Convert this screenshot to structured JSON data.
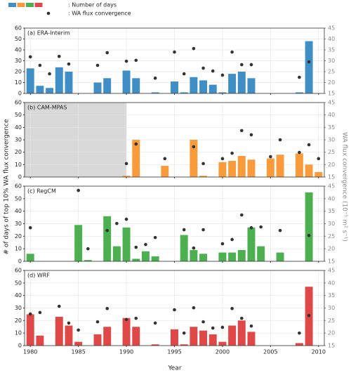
{
  "legend": {
    "colors": [
      "#3f8fc6",
      "#f99b3a",
      "#4caf50",
      "#e04848"
    ],
    "bar_label": ": Number of days",
    "dot_label": ": WA flux convergence",
    "dot_color": "#333333"
  },
  "x_label": "Year",
  "y_label": "# of days of top 10% WA flux convergence",
  "y2_label": "WA flux convergence (10⁻⁵ m² s⁻¹)",
  "xlim": [
    1979.4,
    2010.6
  ],
  "xticks": [
    1980,
    1985,
    1990,
    1995,
    2000,
    2005,
    2010
  ],
  "grid": true,
  "chart_data": [
    {
      "type": "bar",
      "title": "(a) ERA-Interim",
      "x": [
        1980,
        1981,
        1982,
        1983,
        1984,
        1985,
        1986,
        1987,
        1988,
        1989,
        1990,
        1991,
        1992,
        1993,
        1994,
        1995,
        1996,
        1997,
        1998,
        1999,
        2000,
        2001,
        2002,
        2003,
        2004,
        2005,
        2006,
        2007,
        2008,
        2009,
        2010
      ],
      "ylim": [
        0,
        60
      ],
      "yticks": [
        0,
        10,
        20,
        30,
        40,
        50,
        60
      ],
      "y2lim": [
        15,
        45
      ],
      "y2ticks": [
        15,
        20,
        25,
        30,
        35,
        40,
        45
      ],
      "series": [
        {
          "type": "bar",
          "color": "#3f8fc6",
          "values": [
            23,
            7,
            5,
            24,
            20,
            null,
            null,
            10,
            14,
            null,
            21,
            14,
            null,
            1,
            null,
            11,
            1,
            15,
            12,
            8,
            1,
            18,
            20,
            14,
            null,
            null,
            null,
            null,
            1,
            48,
            null
          ]
        },
        {
          "type": "scatter",
          "axis": "y2",
          "color": "#333333",
          "values": [
            31.8,
            27.9,
            24,
            32,
            28.5,
            null,
            null,
            27.9,
            33.7,
            null,
            29.8,
            30.2,
            null,
            22,
            null,
            34,
            24,
            35.6,
            26.6,
            25.3,
            23.4,
            34,
            28.2,
            28.2,
            null,
            null,
            null,
            null,
            22.4,
            29.5,
            null
          ]
        }
      ]
    },
    {
      "type": "bar",
      "title": "(b) CAM-MPAS",
      "shaded_xrange": [
        1979.4,
        1990
      ],
      "x": [
        1980,
        1981,
        1982,
        1983,
        1984,
        1985,
        1986,
        1987,
        1988,
        1989,
        1990,
        1991,
        1992,
        1993,
        1994,
        1995,
        1996,
        1997,
        1998,
        1999,
        2000,
        2001,
        2002,
        2003,
        2004,
        2005,
        2006,
        2007,
        2008,
        2009,
        2010
      ],
      "ylim": [
        0,
        60
      ],
      "yticks": [
        0,
        10,
        20,
        30,
        40,
        50,
        60
      ],
      "y2lim": [
        15,
        45
      ],
      "y2ticks": [
        15,
        20,
        25,
        30,
        35,
        40,
        45
      ],
      "series": [
        {
          "type": "bar",
          "color": "#f99b3a",
          "values": [
            null,
            null,
            null,
            null,
            null,
            null,
            null,
            null,
            null,
            null,
            1,
            30,
            null,
            null,
            9,
            null,
            null,
            30,
            1,
            null,
            12,
            13,
            17,
            14,
            null,
            15,
            18,
            null,
            19,
            10,
            4
          ]
        },
        {
          "type": "scatter",
          "axis": "y2",
          "color": "#333333",
          "values": [
            null,
            null,
            null,
            null,
            null,
            null,
            null,
            null,
            null,
            null,
            20.4,
            28.3,
            null,
            null,
            22.4,
            null,
            null,
            27.2,
            20.4,
            null,
            22.4,
            24.6,
            33.7,
            32,
            null,
            23.2,
            30,
            null,
            24.9,
            28,
            22.4
          ]
        }
      ]
    },
    {
      "type": "bar",
      "title": "(c) RegCM",
      "x": [
        1980,
        1981,
        1982,
        1983,
        1984,
        1985,
        1986,
        1987,
        1988,
        1989,
        1990,
        1991,
        1992,
        1993,
        1994,
        1995,
        1996,
        1997,
        1998,
        1999,
        2000,
        2001,
        2002,
        2003,
        2004,
        2005,
        2006,
        2007,
        2008,
        2009,
        2010
      ],
      "ylim": [
        0,
        60
      ],
      "yticks": [
        0,
        10,
        20,
        30,
        40,
        50,
        60
      ],
      "y2lim": [
        15,
        45
      ],
      "y2ticks": [
        15,
        20,
        25,
        30,
        35,
        40,
        45
      ],
      "series": [
        {
          "type": "bar",
          "color": "#4caf50",
          "values": [
            6,
            null,
            null,
            null,
            null,
            29,
            1,
            null,
            36,
            12,
            27,
            2,
            8,
            4,
            null,
            null,
            21,
            9,
            6,
            null,
            7,
            7,
            9,
            27,
            12,
            null,
            7,
            null,
            null,
            55,
            null
          ]
        },
        {
          "type": "scatter",
          "axis": "y2",
          "color": "#333333",
          "values": [
            28.4,
            null,
            null,
            null,
            null,
            43.3,
            20,
            null,
            27.3,
            30.1,
            31.8,
            20.6,
            21.7,
            24.5,
            null,
            null,
            27.6,
            20.3,
            27.6,
            null,
            22,
            23.7,
            33.5,
            28.4,
            28.7,
            null,
            27.3,
            null,
            null,
            25.3,
            null
          ]
        }
      ]
    },
    {
      "type": "bar",
      "title": "(d) WRF",
      "x": [
        1980,
        1981,
        1982,
        1983,
        1984,
        1985,
        1986,
        1987,
        1988,
        1989,
        1990,
        1991,
        1992,
        1993,
        1994,
        1995,
        1996,
        1997,
        1998,
        1999,
        2000,
        2001,
        2002,
        2003,
        2004,
        2005,
        2006,
        2007,
        2008,
        2009,
        2010
      ],
      "ylim": [
        0,
        60
      ],
      "yticks": [
        0,
        10,
        20,
        30,
        40,
        50,
        60
      ],
      "y2lim": [
        15,
        45
      ],
      "y2ticks": [
        15,
        20,
        25,
        30,
        35,
        40,
        45
      ],
      "series": [
        {
          "type": "bar",
          "color": "#e04848",
          "values": [
            25,
            8,
            null,
            23,
            16,
            3,
            null,
            9,
            15,
            null,
            22,
            15,
            null,
            1,
            null,
            13,
            1,
            15,
            12,
            9,
            3,
            16,
            20,
            11,
            null,
            null,
            null,
            null,
            2,
            47,
            null
          ]
        },
        {
          "type": "scatter",
          "axis": "y2",
          "color": "#333333",
          "values": [
            27.6,
            28.2,
            null,
            30.7,
            24,
            21.2,
            null,
            24.5,
            29.8,
            null,
            25.4,
            25.9,
            null,
            24,
            null,
            29.3,
            20,
            30.1,
            24.5,
            22,
            22.3,
            29.8,
            25.9,
            22.8,
            null,
            null,
            null,
            null,
            20,
            27,
            null
          ]
        }
      ]
    }
  ]
}
